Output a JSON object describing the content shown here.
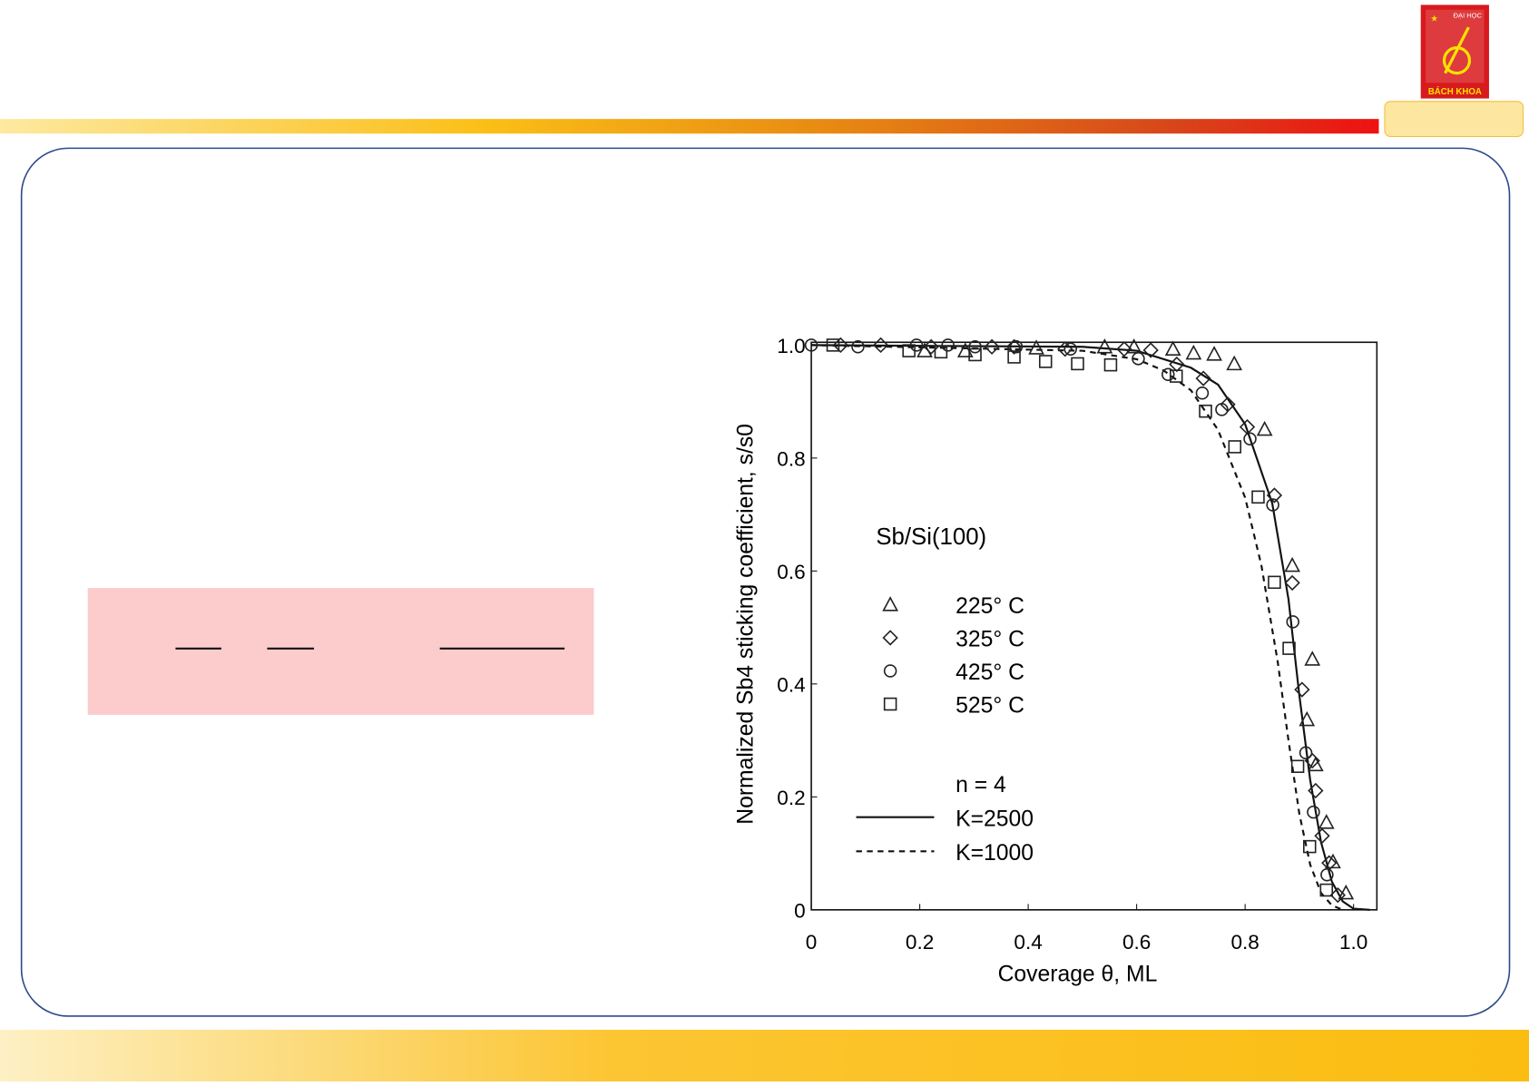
{
  "logo": {
    "top": "ĐẠI HỌC",
    "bottom": "BÁCH KHOA"
  },
  "chart_data": {
    "type": "scatter",
    "x_label": "Coverage θ, ML",
    "y_label": "Normalized Sb4 sticking coefficient, s/s0",
    "legend_title": "Sb/Si(100)",
    "lines_title": "n = 4",
    "xlim": [
      0,
      1.043
    ],
    "ylim": [
      0,
      1.005
    ],
    "xticks": [
      0,
      0.2,
      0.4,
      0.6,
      0.8,
      {
        "value": 1,
        "label": "1.0"
      }
    ],
    "yticks": [
      0,
      0.2,
      0.4,
      0.6,
      0.8,
      {
        "value": 1,
        "label": "1.0"
      }
    ],
    "series": [
      {
        "name": "225° C",
        "marker": "triangle",
        "color": "#222222",
        "x": [
          0.209,
          0.284,
          0.415,
          0.541,
          0.595,
          0.667,
          0.705,
          0.743,
          0.78,
          0.836,
          0.887,
          0.914,
          0.924,
          0.93,
          0.95,
          0.962,
          0.986
        ],
        "values": [
          0.99,
          0.99,
          0.995,
          0.997,
          0.997,
          0.993,
          0.986,
          0.984,
          0.967,
          0.851,
          0.61,
          0.337,
          0.444,
          0.257,
          0.155,
          0.085,
          0.03
        ]
      },
      {
        "name": "325° C",
        "marker": "diamond",
        "color": "#222222",
        "x": [
          0.054,
          0.128,
          0.221,
          0.333,
          0.374,
          0.468,
          0.577,
          0.626,
          0.674,
          0.723,
          0.768,
          0.804,
          0.854,
          0.887,
          0.905,
          0.924,
          0.93,
          0.942,
          0.955,
          0.971
        ],
        "values": [
          1.0,
          1.0,
          0.997,
          0.997,
          0.997,
          0.993,
          0.993,
          0.991,
          0.966,
          0.941,
          0.895,
          0.855,
          0.734,
          0.579,
          0.39,
          0.264,
          0.211,
          0.131,
          0.083,
          0.026
        ]
      },
      {
        "name": "425° C",
        "marker": "circle",
        "color": "#222222",
        "x": [
          0,
          0.086,
          0.194,
          0.252,
          0.302,
          0.378,
          0.478,
          0.603,
          0.658,
          0.721,
          0.757,
          0.809,
          0.851,
          0.888,
          0.912,
          0.926,
          0.951
        ],
        "values": [
          1.0,
          0.997,
          1.0,
          1.0,
          0.997,
          0.997,
          0.993,
          0.976,
          0.948,
          0.915,
          0.886,
          0.834,
          0.717,
          0.51,
          0.278,
          0.173,
          0.062
        ]
      },
      {
        "name": "525° C",
        "marker": "square",
        "color": "#222222",
        "x": [
          0.04,
          0.18,
          0.239,
          0.302,
          0.374,
          0.432,
          0.491,
          0.552,
          0.673,
          0.727,
          0.781,
          0.824,
          0.854,
          0.881,
          0.897,
          0.919,
          0.95
        ],
        "values": [
          1.0,
          0.99,
          0.988,
          0.983,
          0.979,
          0.971,
          0.967,
          0.965,
          0.945,
          0.883,
          0.82,
          0.731,
          0.58,
          0.463,
          0.254,
          0.112,
          0.035
        ]
      }
    ],
    "lines": [
      {
        "name": "K=2500",
        "line_style": "solid",
        "color": "#111111",
        "x": [
          0,
          0.5,
          0.6,
          0.7,
          0.75,
          0.8,
          0.85,
          0.88,
          0.9,
          0.92,
          0.94,
          0.96,
          0.98,
          1.0,
          1.03
        ],
        "values": [
          1.0,
          0.997,
          0.99,
          0.96,
          0.93,
          0.86,
          0.72,
          0.55,
          0.38,
          0.23,
          0.12,
          0.05,
          0.015,
          0.002,
          0
        ]
      },
      {
        "name": "K=1000",
        "line_style": "dashed",
        "color": "#111111",
        "x": [
          0,
          0.5,
          0.6,
          0.65,
          0.7,
          0.75,
          0.8,
          0.83,
          0.86,
          0.88,
          0.9,
          0.92,
          0.94,
          0.96,
          0.98
        ],
        "values": [
          1.0,
          0.99,
          0.975,
          0.955,
          0.92,
          0.85,
          0.73,
          0.61,
          0.44,
          0.3,
          0.17,
          0.08,
          0.03,
          0.008,
          0
        ]
      }
    ]
  }
}
